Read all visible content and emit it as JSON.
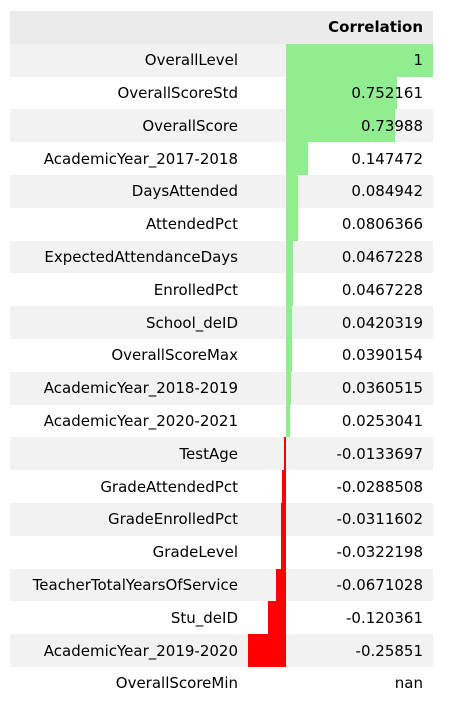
{
  "header": {
    "column_title": "Correlation"
  },
  "colors": {
    "positive_bar": "#90ee90",
    "negative_bar": "#ff0000"
  },
  "chart_data": {
    "type": "bar",
    "categories": [
      "OverallLevel",
      "OverallScoreStd",
      "OverallScore",
      "AcademicYear_2017-2018",
      "DaysAttended",
      "AttendedPct",
      "ExpectedAttendanceDays",
      "EnrolledPct",
      "School_deID",
      "OverallScoreMax",
      "AcademicYear_2018-2019",
      "AcademicYear_2020-2021",
      "TestAge",
      "GradeAttendedPct",
      "GradeEnrolledPct",
      "GradeLevel",
      "TeacherTotalYearsOfService",
      "Stu_deID",
      "AcademicYear_2019-2020",
      "OverallScoreMin"
    ],
    "values": [
      1,
      0.752161,
      0.73988,
      0.147472,
      0.084942,
      0.0806366,
      0.0467228,
      0.0467228,
      0.0420319,
      0.0390154,
      0.0360515,
      0.0253041,
      -0.0133697,
      -0.0288508,
      -0.0311602,
      -0.0322198,
      -0.0671028,
      -0.120361,
      -0.25851,
      null
    ],
    "display_values": [
      "1",
      "0.752161",
      "0.73988",
      "0.147472",
      "0.084942",
      "0.0806366",
      "0.0467228",
      "0.0467228",
      "0.0420319",
      "0.0390154",
      "0.0360515",
      "0.0253041",
      "-0.0133697",
      "-0.0288508",
      "-0.0311602",
      "-0.0322198",
      "-0.0671028",
      "-0.120361",
      "-0.25851",
      "nan"
    ],
    "xlim": [
      -0.25851,
      1
    ]
  }
}
